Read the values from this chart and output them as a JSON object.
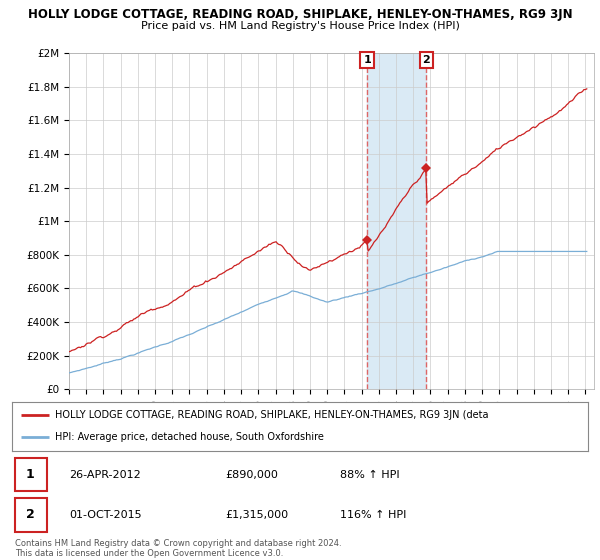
{
  "title": "HOLLY LODGE COTTAGE, READING ROAD, SHIPLAKE, HENLEY-ON-THAMES, RG9 3JN",
  "subtitle": "Price paid vs. HM Land Registry's House Price Index (HPI)",
  "hpi_color": "#7aaed6",
  "price_color": "#cc2222",
  "bg_color": "#ffffff",
  "plot_bg_color": "#ffffff",
  "grid_color": "#cccccc",
  "highlight_color": "#daeaf5",
  "sale1_x": 2012.32,
  "sale1_y": 890000,
  "sale1_label": "1",
  "sale2_x": 2015.75,
  "sale2_y": 1315000,
  "sale2_label": "2",
  "xmin": 1995,
  "xmax": 2025.5,
  "ymin": 0,
  "ymax": 2000000,
  "yticks": [
    0,
    200000,
    400000,
    600000,
    800000,
    1000000,
    1200000,
    1400000,
    1600000,
    1800000,
    2000000
  ],
  "ytick_labels": [
    "£0",
    "£200K",
    "£400K",
    "£600K",
    "£800K",
    "£1M",
    "£1.2M",
    "£1.4M",
    "£1.6M",
    "£1.8M",
    "£2M"
  ],
  "legend_red_label": "HOLLY LODGE COTTAGE, READING ROAD, SHIPLAKE, HENLEY-ON-THAMES, RG9 3JN (deta",
  "legend_blue_label": "HPI: Average price, detached house, South Oxfordshire",
  "table_row1": [
    "1",
    "26-APR-2012",
    "£890,000",
    "88% ↑ HPI"
  ],
  "table_row2": [
    "2",
    "01-OCT-2015",
    "£1,315,000",
    "116% ↑ HPI"
  ],
  "footnote": "Contains HM Land Registry data © Crown copyright and database right 2024.\nThis data is licensed under the Open Government Licence v3.0."
}
